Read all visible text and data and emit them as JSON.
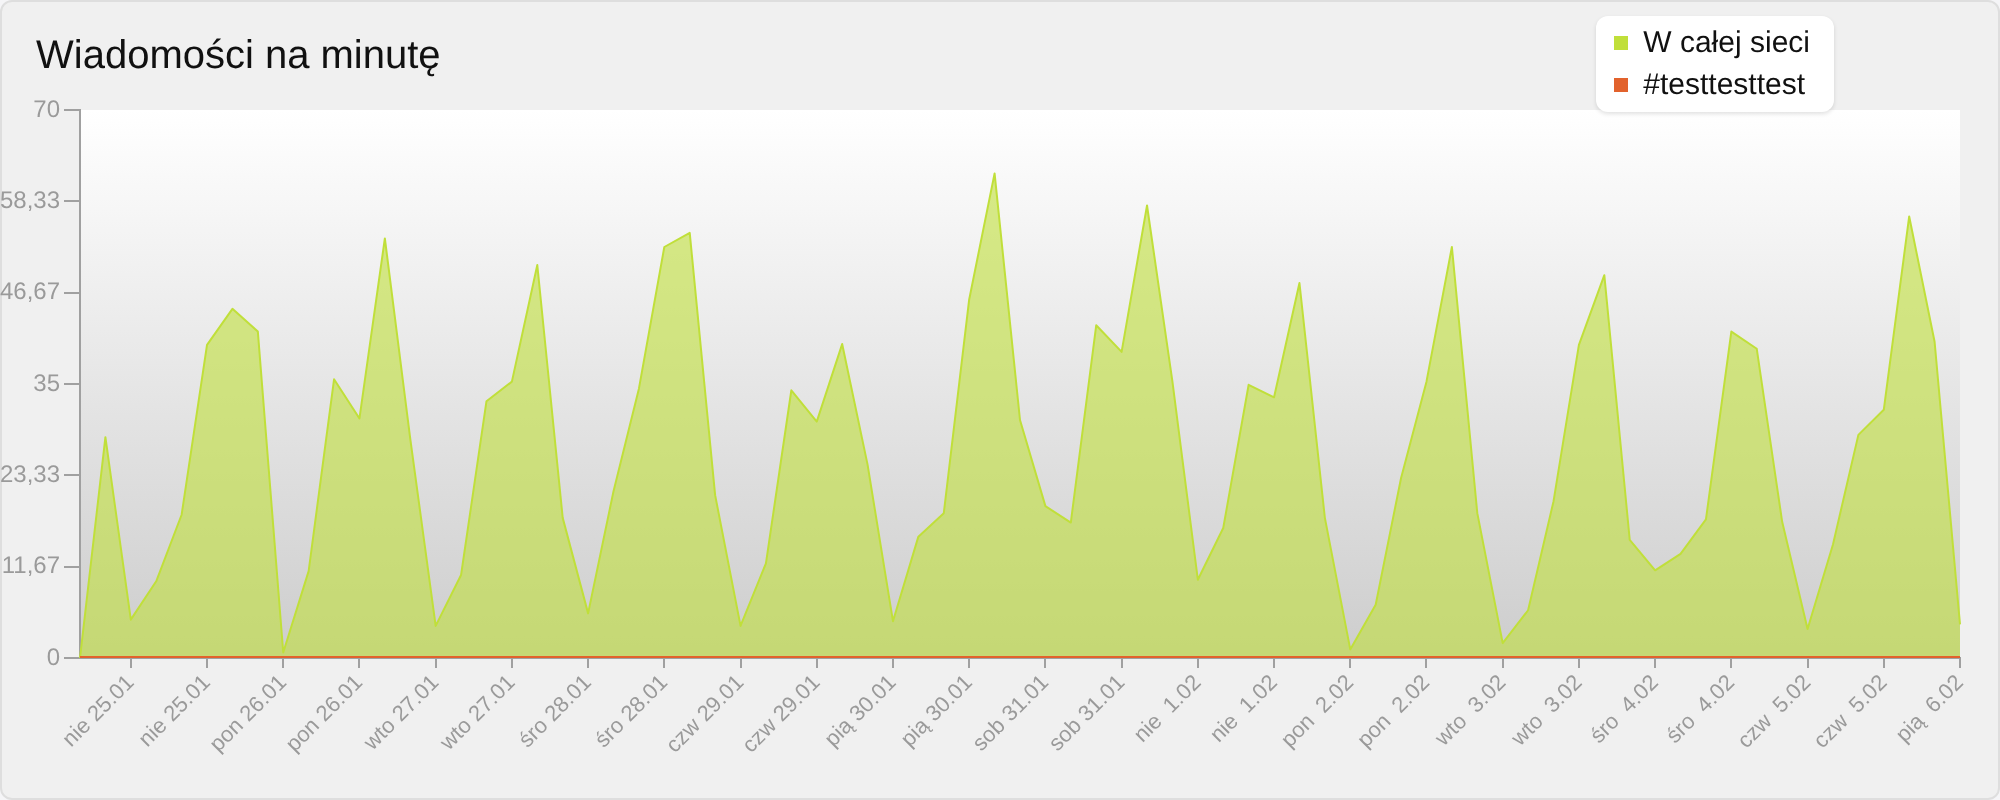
{
  "chart_data": {
    "type": "area",
    "title": "Wiadomości na minutę",
    "categories": [
      null,
      null,
      "nie 25.01",
      null,
      null,
      "nie 25.01",
      null,
      null,
      "pon 26.01",
      null,
      null,
      "pon 26.01",
      null,
      null,
      "wto 27.01",
      null,
      null,
      "wto 27.01",
      null,
      null,
      "śro 28.01",
      null,
      null,
      "śro 28.01",
      null,
      null,
      "czw 29.01",
      null,
      null,
      "czw 29.01",
      null,
      null,
      "pią 30.01",
      null,
      null,
      "pią 30.01",
      null,
      null,
      "sob 31.01",
      null,
      null,
      "sob 31.01",
      null,
      null,
      "nie  1.02",
      null,
      null,
      "nie  1.02",
      null,
      null,
      "pon  2.02",
      null,
      null,
      "pon  2.02",
      null,
      null,
      "wto  3.02",
      null,
      null,
      "wto  3.02",
      null,
      null,
      "śro  4.02",
      null,
      null,
      "śro  4.02",
      null,
      null,
      "czw  5.02",
      null,
      null,
      "czw  5.02",
      null,
      null,
      "pią  6.02"
    ],
    "series": [
      {
        "name": "W całej sieci",
        "color": "#c0df3a",
        "values": [
          0,
          28.2,
          4.9,
          9.8,
          18.3,
          40.0,
          44.6,
          41.7,
          0.7,
          11.1,
          35.6,
          30.6,
          53.6,
          28,
          4.1,
          10.6,
          32.8,
          35.3,
          50.2,
          17.9,
          5.7,
          21.3,
          34.4,
          52.5,
          54.3,
          20.8,
          4.1,
          12.1,
          34.2,
          30.2,
          40.1,
          24.7,
          4.7,
          15.5,
          18.5,
          45.8,
          61.9,
          30.4,
          19.4,
          17.3,
          42.5,
          39.1,
          57.8,
          35.3,
          10.0,
          16.6,
          34.9,
          33.3,
          47.9,
          17.9,
          1.1,
          6.8,
          23.0,
          35.3,
          52.5,
          18.5,
          1.9,
          6.1,
          20.0,
          40.0,
          48.9,
          15.1,
          11.2,
          13.3,
          17.7,
          41.7,
          39.5,
          17.4,
          3.7,
          14.5,
          28.5,
          31.7,
          56.4,
          40.4,
          4.3
        ]
      },
      {
        "name": "#testtesttest",
        "type": "line",
        "color": "#e2622c",
        "values": [
          0,
          0,
          0,
          0,
          0,
          0,
          0,
          0,
          0,
          0,
          0,
          0,
          0,
          0,
          0,
          0,
          0,
          0,
          0,
          0,
          0,
          0,
          0,
          0,
          0,
          0,
          0,
          0,
          0,
          0,
          0,
          0,
          0,
          0,
          0,
          0,
          0,
          0,
          0,
          0,
          0,
          0,
          0,
          0,
          0,
          0,
          0,
          0,
          0,
          0,
          0,
          0,
          0,
          0,
          0,
          0,
          0,
          0,
          0,
          0,
          0,
          0,
          0,
          0,
          0,
          0,
          0,
          0,
          0,
          0,
          0,
          0,
          0,
          0,
          0
        ]
      }
    ],
    "ylim": [
      0,
      70
    ],
    "yticks": [
      0,
      {
        "value": 11.67,
        "label": "11,67"
      },
      {
        "value": 23.33,
        "label": "23,33"
      },
      35,
      {
        "value": 46.67,
        "label": "46,67"
      },
      {
        "value": 58.33,
        "label": "58,33"
      },
      70
    ],
    "grid": false,
    "legend": "top right",
    "marker": "none"
  }
}
